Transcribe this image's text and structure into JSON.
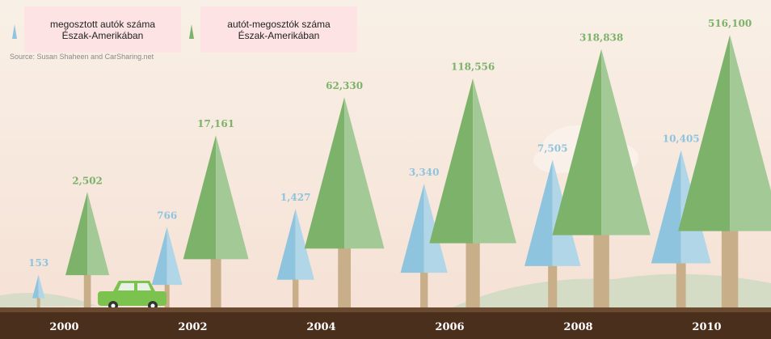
{
  "chart_data": {
    "type": "tree-pictograph",
    "source": "Source: Susan Shaheen and CarSharing.net",
    "categories": [
      "2000",
      "2002",
      "2004",
      "2006",
      "2008",
      "2010"
    ],
    "log_scale": true,
    "ylim": [
      50,
      1000000
    ],
    "series": [
      {
        "name": "megosztott autók száma\nÉszak-Amerikában",
        "color": "#8fc4de",
        "values": [
          153,
          766,
          1427,
          3340,
          7505,
          10405
        ],
        "value_labels": [
          "153",
          "766",
          "1,427",
          "3,340",
          "7,505",
          "10,405"
        ]
      },
      {
        "name": "autót-megosztók száma\nÉszak-Amerikában",
        "color": "#7cb26a",
        "values": [
          2502,
          17161,
          62330,
          118556,
          318838,
          516100
        ],
        "value_labels": [
          "2,502",
          "17,161",
          "62,330",
          "118,556",
          "318,838",
          "516,100"
        ]
      }
    ]
  }
}
